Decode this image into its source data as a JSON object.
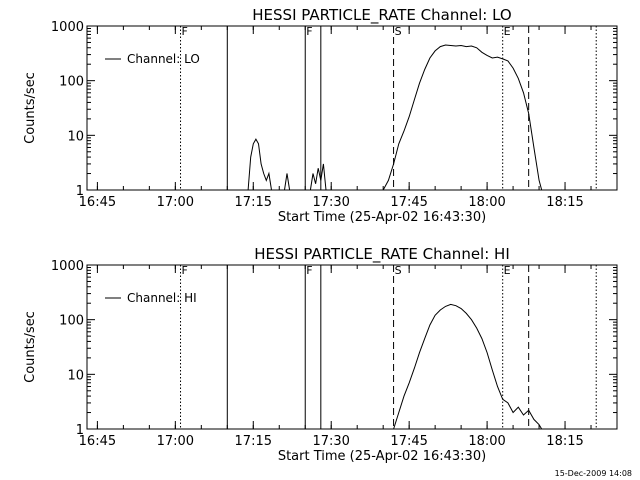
{
  "chart_data": [
    {
      "type": "line",
      "title": "HESSI PARTICLE_RATE Channel: LO",
      "xlabel": "Start Time (25-Apr-02 16:43:30)",
      "ylabel": "Counts/sec",
      "y_scale": "log",
      "ylim": [
        1,
        1000
      ],
      "xlim": [
        "16:43:30",
        "18:25:30"
      ],
      "x_ticks": [
        "16:45",
        "17:00",
        "17:15",
        "17:30",
        "17:45",
        "18:00",
        "18:15"
      ],
      "y_ticks": [
        "1",
        "10",
        "100",
        "1000"
      ],
      "legend": {
        "label": "Channel: LO",
        "placement": "top-left"
      },
      "vlines": [
        {
          "time": "17:01",
          "style": "dotted",
          "label": "F"
        },
        {
          "time": "17:10",
          "style": "solid",
          "label": ""
        },
        {
          "time": "17:25",
          "style": "solid",
          "label": "F"
        },
        {
          "time": "17:28",
          "style": "solid",
          "label": ""
        },
        {
          "time": "17:42",
          "style": "dashed",
          "label": "S"
        },
        {
          "time": "18:03",
          "style": "dotted",
          "label": "E"
        },
        {
          "time": "18:08",
          "style": "dashed",
          "label": ""
        },
        {
          "time": "18:21",
          "style": "dotted",
          "label": ""
        }
      ],
      "series": [
        {
          "name": "Channel: LO",
          "segments": [
            [
              [
                "17:14",
                1
              ],
              [
                "17:14.5",
                4
              ],
              [
                "17:15",
                7
              ],
              [
                "17:15.5",
                8.5
              ],
              [
                "17:16",
                7
              ],
              [
                "17:16.5",
                3
              ],
              [
                "17:17",
                2
              ],
              [
                "17:17.5",
                1.5
              ],
              [
                "17:18",
                2
              ],
              [
                "17:18.5",
                1
              ]
            ],
            [
              [
                "17:21",
                1
              ],
              [
                "17:21.5",
                2
              ],
              [
                "17:22",
                1
              ]
            ],
            [
              [
                "17:26",
                1
              ],
              [
                "17:26.5",
                2
              ],
              [
                "17:27",
                1.3
              ],
              [
                "17:27.5",
                2.5
              ],
              [
                "17:28",
                1.5
              ],
              [
                "17:28.5",
                3
              ],
              [
                "17:29",
                1
              ]
            ],
            [
              [
                "17:40",
                1
              ],
              [
                "17:41",
                1.5
              ],
              [
                "17:42",
                3
              ],
              [
                "17:43",
                7
              ],
              [
                "17:44",
                12
              ],
              [
                "17:45",
                22
              ],
              [
                "17:46",
                45
              ],
              [
                "17:47",
                90
              ],
              [
                "17:48",
                160
              ],
              [
                "17:49",
                260
              ],
              [
                "17:50",
                350
              ],
              [
                "17:51",
                420
              ],
              [
                "17:52",
                450
              ],
              [
                "17:53",
                440
              ],
              [
                "17:54",
                430
              ],
              [
                "17:55",
                440
              ],
              [
                "17:56",
                420
              ],
              [
                "17:57",
                430
              ],
              [
                "17:58",
                400
              ],
              [
                "17:59",
                330
              ],
              [
                "18:00",
                290
              ],
              [
                "18:01",
                260
              ],
              [
                "18:02",
                270
              ],
              [
                "18:03",
                250
              ],
              [
                "18:04",
                230
              ],
              [
                "18:05",
                170
              ],
              [
                "18:06",
                110
              ],
              [
                "18:07",
                60
              ],
              [
                "18:08",
                25
              ],
              [
                "18:09",
                6
              ],
              [
                "18:10",
                1.5
              ],
              [
                "18:10.5",
                1
              ]
            ]
          ]
        }
      ]
    },
    {
      "type": "line",
      "title": "HESSI PARTICLE_RATE Channel: HI",
      "xlabel": "Start Time (25-Apr-02 16:43:30)",
      "ylabel": "Counts/sec",
      "y_scale": "log",
      "ylim": [
        1,
        1000
      ],
      "xlim": [
        "16:43:30",
        "18:25:30"
      ],
      "x_ticks": [
        "16:45",
        "17:00",
        "17:15",
        "17:30",
        "17:45",
        "18:00",
        "18:15"
      ],
      "y_ticks": [
        "1",
        "10",
        "100",
        "1000"
      ],
      "legend": {
        "label": "Channel: HI",
        "placement": "top-left"
      },
      "vlines": [
        {
          "time": "17:01",
          "style": "dotted",
          "label": "F"
        },
        {
          "time": "17:10",
          "style": "solid",
          "label": ""
        },
        {
          "time": "17:25",
          "style": "solid",
          "label": "F"
        },
        {
          "time": "17:28",
          "style": "solid",
          "label": ""
        },
        {
          "time": "17:42",
          "style": "dashed",
          "label": "S"
        },
        {
          "time": "18:03",
          "style": "dotted",
          "label": "E"
        },
        {
          "time": "18:08",
          "style": "dashed",
          "label": ""
        },
        {
          "time": "18:21",
          "style": "dotted",
          "label": ""
        }
      ],
      "series": [
        {
          "name": "Channel: HI",
          "segments": [
            [
              [
                "17:42",
                1
              ],
              [
                "17:43",
                2
              ],
              [
                "17:44",
                4
              ],
              [
                "17:45",
                7
              ],
              [
                "17:46",
                13
              ],
              [
                "17:47",
                25
              ],
              [
                "17:48",
                45
              ],
              [
                "17:49",
                80
              ],
              [
                "17:50",
                120
              ],
              [
                "17:51",
                150
              ],
              [
                "17:52",
                175
              ],
              [
                "17:53",
                190
              ],
              [
                "17:54",
                180
              ],
              [
                "17:55",
                160
              ],
              [
                "17:56",
                130
              ],
              [
                "17:57",
                100
              ],
              [
                "17:58",
                70
              ],
              [
                "17:59",
                45
              ],
              [
                "18:00",
                25
              ],
              [
                "18:01",
                12
              ],
              [
                "18:02",
                6
              ],
              [
                "18:03",
                3.5
              ],
              [
                "18:04",
                3
              ],
              [
                "18:05",
                2
              ],
              [
                "18:06",
                2.5
              ],
              [
                "18:07",
                1.8
              ],
              [
                "18:08",
                2.2
              ],
              [
                "18:09",
                1.5
              ],
              [
                "18:10",
                1.2
              ],
              [
                "18:10.5",
                1
              ]
            ]
          ]
        }
      ]
    }
  ],
  "footer": {
    "timestamp": "15-Dec-2009 14:08"
  }
}
